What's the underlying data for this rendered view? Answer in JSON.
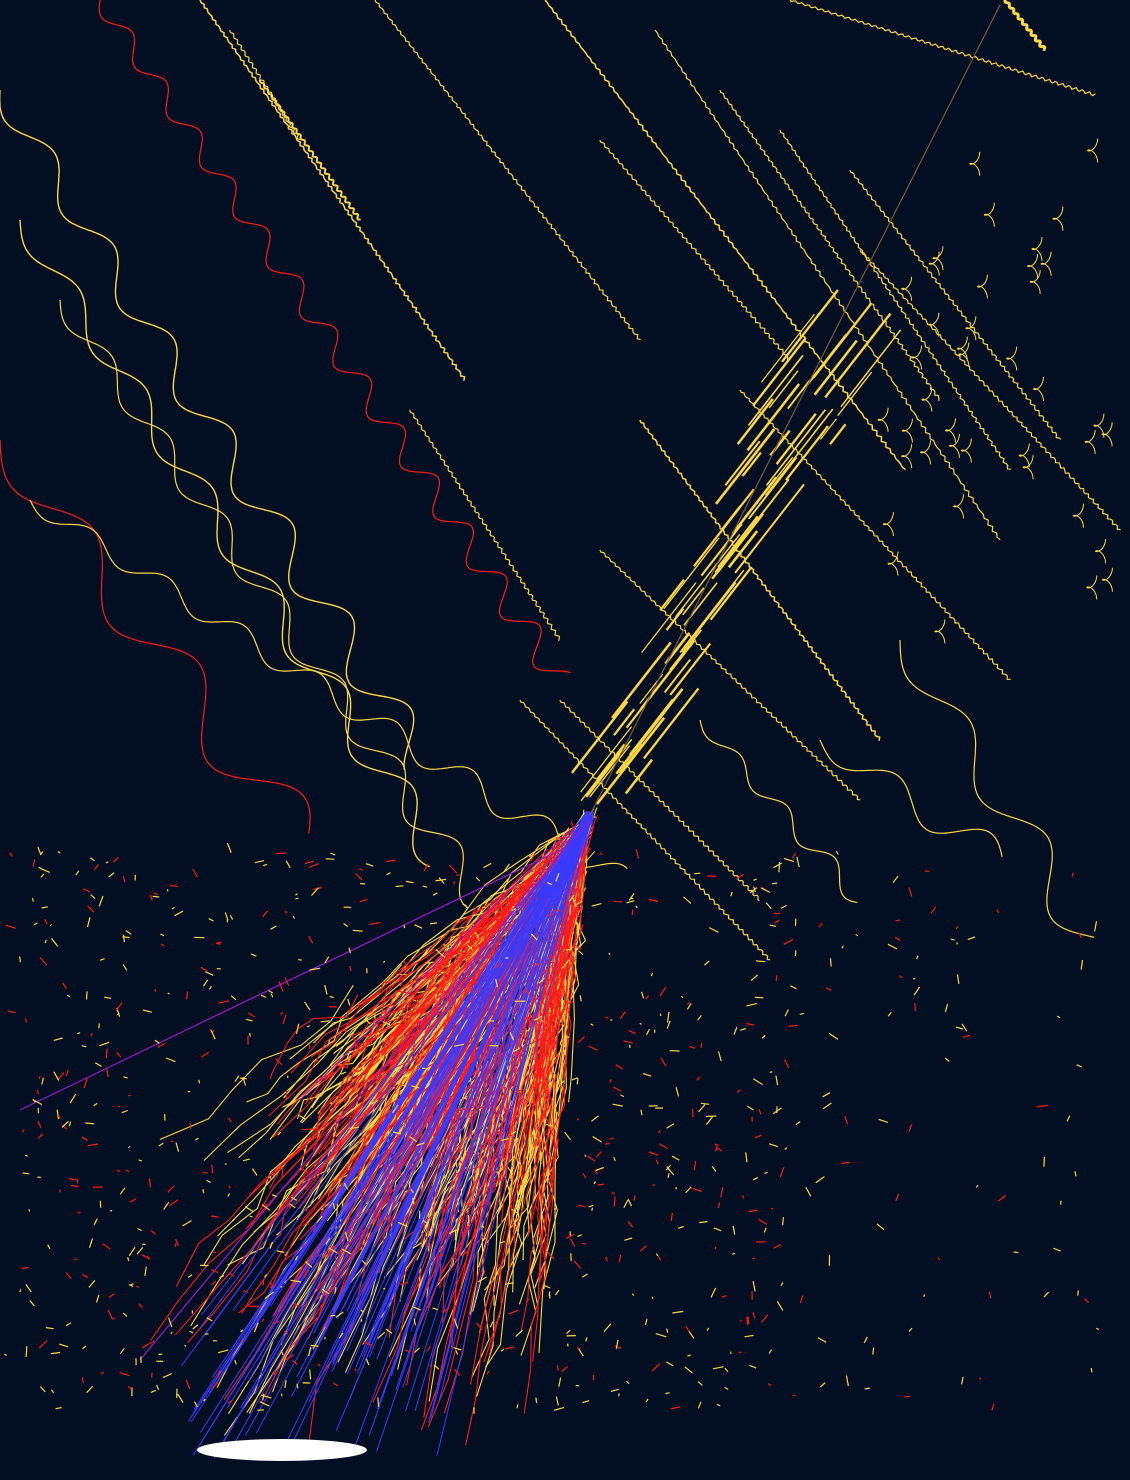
{
  "scene": {
    "background": "#020e22",
    "colors": {
      "gamma": "#ffd743",
      "electron": "#ff1a1a",
      "positive": "#3a3aff",
      "neutral": "#9a1acc",
      "detector": "#ffffff",
      "primary": "#7a5a3a"
    }
  }
}
